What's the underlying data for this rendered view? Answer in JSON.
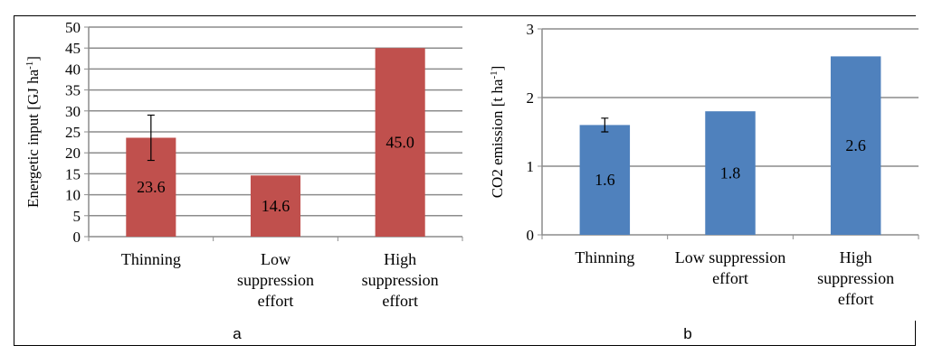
{
  "chart_data": [
    {
      "type": "bar",
      "panel_label": "a",
      "categories": [
        [
          "Thinning"
        ],
        [
          "Low",
          "suppression",
          "effort"
        ],
        [
          "High",
          "suppression",
          "effort"
        ]
      ],
      "values": [
        23.6,
        14.6,
        45.0
      ],
      "data_labels": [
        "23.6",
        "14.6",
        "45.0"
      ],
      "error_bars": [
        {
          "index": 0,
          "low": 18.2,
          "high": 29.0
        }
      ],
      "ylabel": "Energetic input [GJ ha",
      "ylabel_sup": "-1",
      "ylabel_end": "]",
      "ylim": [
        0,
        50
      ],
      "yticks": [
        0,
        5,
        10,
        15,
        20,
        25,
        30,
        35,
        40,
        45,
        50
      ],
      "grid": true,
      "color": "#C0504D"
    },
    {
      "type": "bar",
      "panel_label": "b",
      "categories": [
        [
          "Thinning"
        ],
        [
          "Low suppression",
          "effort"
        ],
        [
          "High",
          "suppression",
          "effort"
        ]
      ],
      "values": [
        1.6,
        1.8,
        2.6
      ],
      "data_labels": [
        "1.6",
        "1.8",
        "2.6"
      ],
      "error_bars": [
        {
          "index": 0,
          "low": 1.5,
          "high": 1.7
        }
      ],
      "ylabel": "CO2 emission [t ha",
      "ylabel_sup": "-1",
      "ylabel_end": "]",
      "ylim": [
        0,
        3
      ],
      "yticks": [
        0,
        1,
        2,
        3
      ],
      "grid": true,
      "color": "#4F81BD"
    }
  ]
}
